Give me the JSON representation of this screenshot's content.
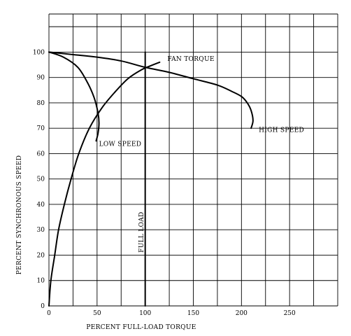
{
  "chart_data": {
    "type": "line",
    "xlabel": "PERCENT FULL-LOAD TORQUE",
    "ylabel": "PERCENT SYNCHRONOUS SPEED",
    "xlim": [
      0,
      300
    ],
    "ylim": [
      0,
      115
    ],
    "x_ticks": [
      {
        "value": 0,
        "label": "0"
      },
      {
        "value": 50,
        "label": "50"
      },
      {
        "value": 100,
        "label": "100"
      },
      {
        "value": 150,
        "label": "150"
      },
      {
        "value": 200,
        "label": "200"
      },
      {
        "value": 250,
        "label": "250"
      }
    ],
    "y_ticks": [
      {
        "value": 0,
        "label": "0"
      },
      {
        "value": 10,
        "label": "10"
      },
      {
        "value": 20,
        "label": "20"
      },
      {
        "value": 30,
        "label": "30"
      },
      {
        "value": 40,
        "label": "40"
      },
      {
        "value": 50,
        "label": "50"
      },
      {
        "value": 60,
        "label": "60"
      },
      {
        "value": 70,
        "label": "70"
      },
      {
        "value": 80,
        "label": "80"
      },
      {
        "value": 90,
        "label": "90"
      },
      {
        "value": 100,
        "label": "100"
      }
    ],
    "grid": true,
    "vertical_gridlines": [
      0,
      25,
      50,
      75,
      100,
      125,
      150,
      175,
      200,
      225,
      250,
      275,
      300
    ],
    "horizontal_gridlines": [
      0,
      10,
      20,
      30,
      40,
      50,
      60,
      70,
      80,
      90,
      100,
      110,
      115
    ],
    "series": [
      {
        "name": "HIGH SPEED",
        "points": [
          [
            0,
            100
          ],
          [
            25,
            99
          ],
          [
            50,
            98
          ],
          [
            75,
            96.5
          ],
          [
            100,
            94
          ],
          [
            125,
            92
          ],
          [
            150,
            89.5
          ],
          [
            175,
            87
          ],
          [
            190,
            84.5
          ],
          [
            200,
            82.5
          ],
          [
            206,
            80
          ],
          [
            210,
            77
          ],
          [
            212,
            73
          ],
          [
            210,
            70
          ]
        ]
      },
      {
        "name": "LOW SPEED",
        "points": [
          [
            0,
            100
          ],
          [
            15,
            98
          ],
          [
            30,
            94
          ],
          [
            40,
            88
          ],
          [
            47,
            82
          ],
          [
            51,
            76
          ],
          [
            52,
            72
          ],
          [
            51,
            68
          ],
          [
            49,
            65
          ]
        ]
      },
      {
        "name": "FAN TORQUE",
        "points": [
          [
            0,
            0
          ],
          [
            2,
            10
          ],
          [
            6,
            20
          ],
          [
            10,
            30
          ],
          [
            16,
            40
          ],
          [
            23,
            50
          ],
          [
            31,
            60
          ],
          [
            42,
            70
          ],
          [
            55,
            78
          ],
          [
            68,
            84
          ],
          [
            82,
            89.5
          ],
          [
            96,
            93
          ],
          [
            105,
            94.5
          ],
          [
            115,
            96
          ]
        ]
      },
      {
        "name": "FULL LOAD",
        "points": [
          [
            100,
            0
          ],
          [
            100,
            100
          ]
        ]
      }
    ],
    "annotations": [
      {
        "text": "FAN TORQUE",
        "x": 123,
        "y": 96.5
      },
      {
        "text": "LOW SPEED",
        "x": 52,
        "y": 63
      },
      {
        "text": "HIGH SPEED",
        "x": 218,
        "y": 68.5
      },
      {
        "text": "FULL LOAD",
        "x": 98,
        "y": 21,
        "orientation": "vertical"
      }
    ]
  }
}
